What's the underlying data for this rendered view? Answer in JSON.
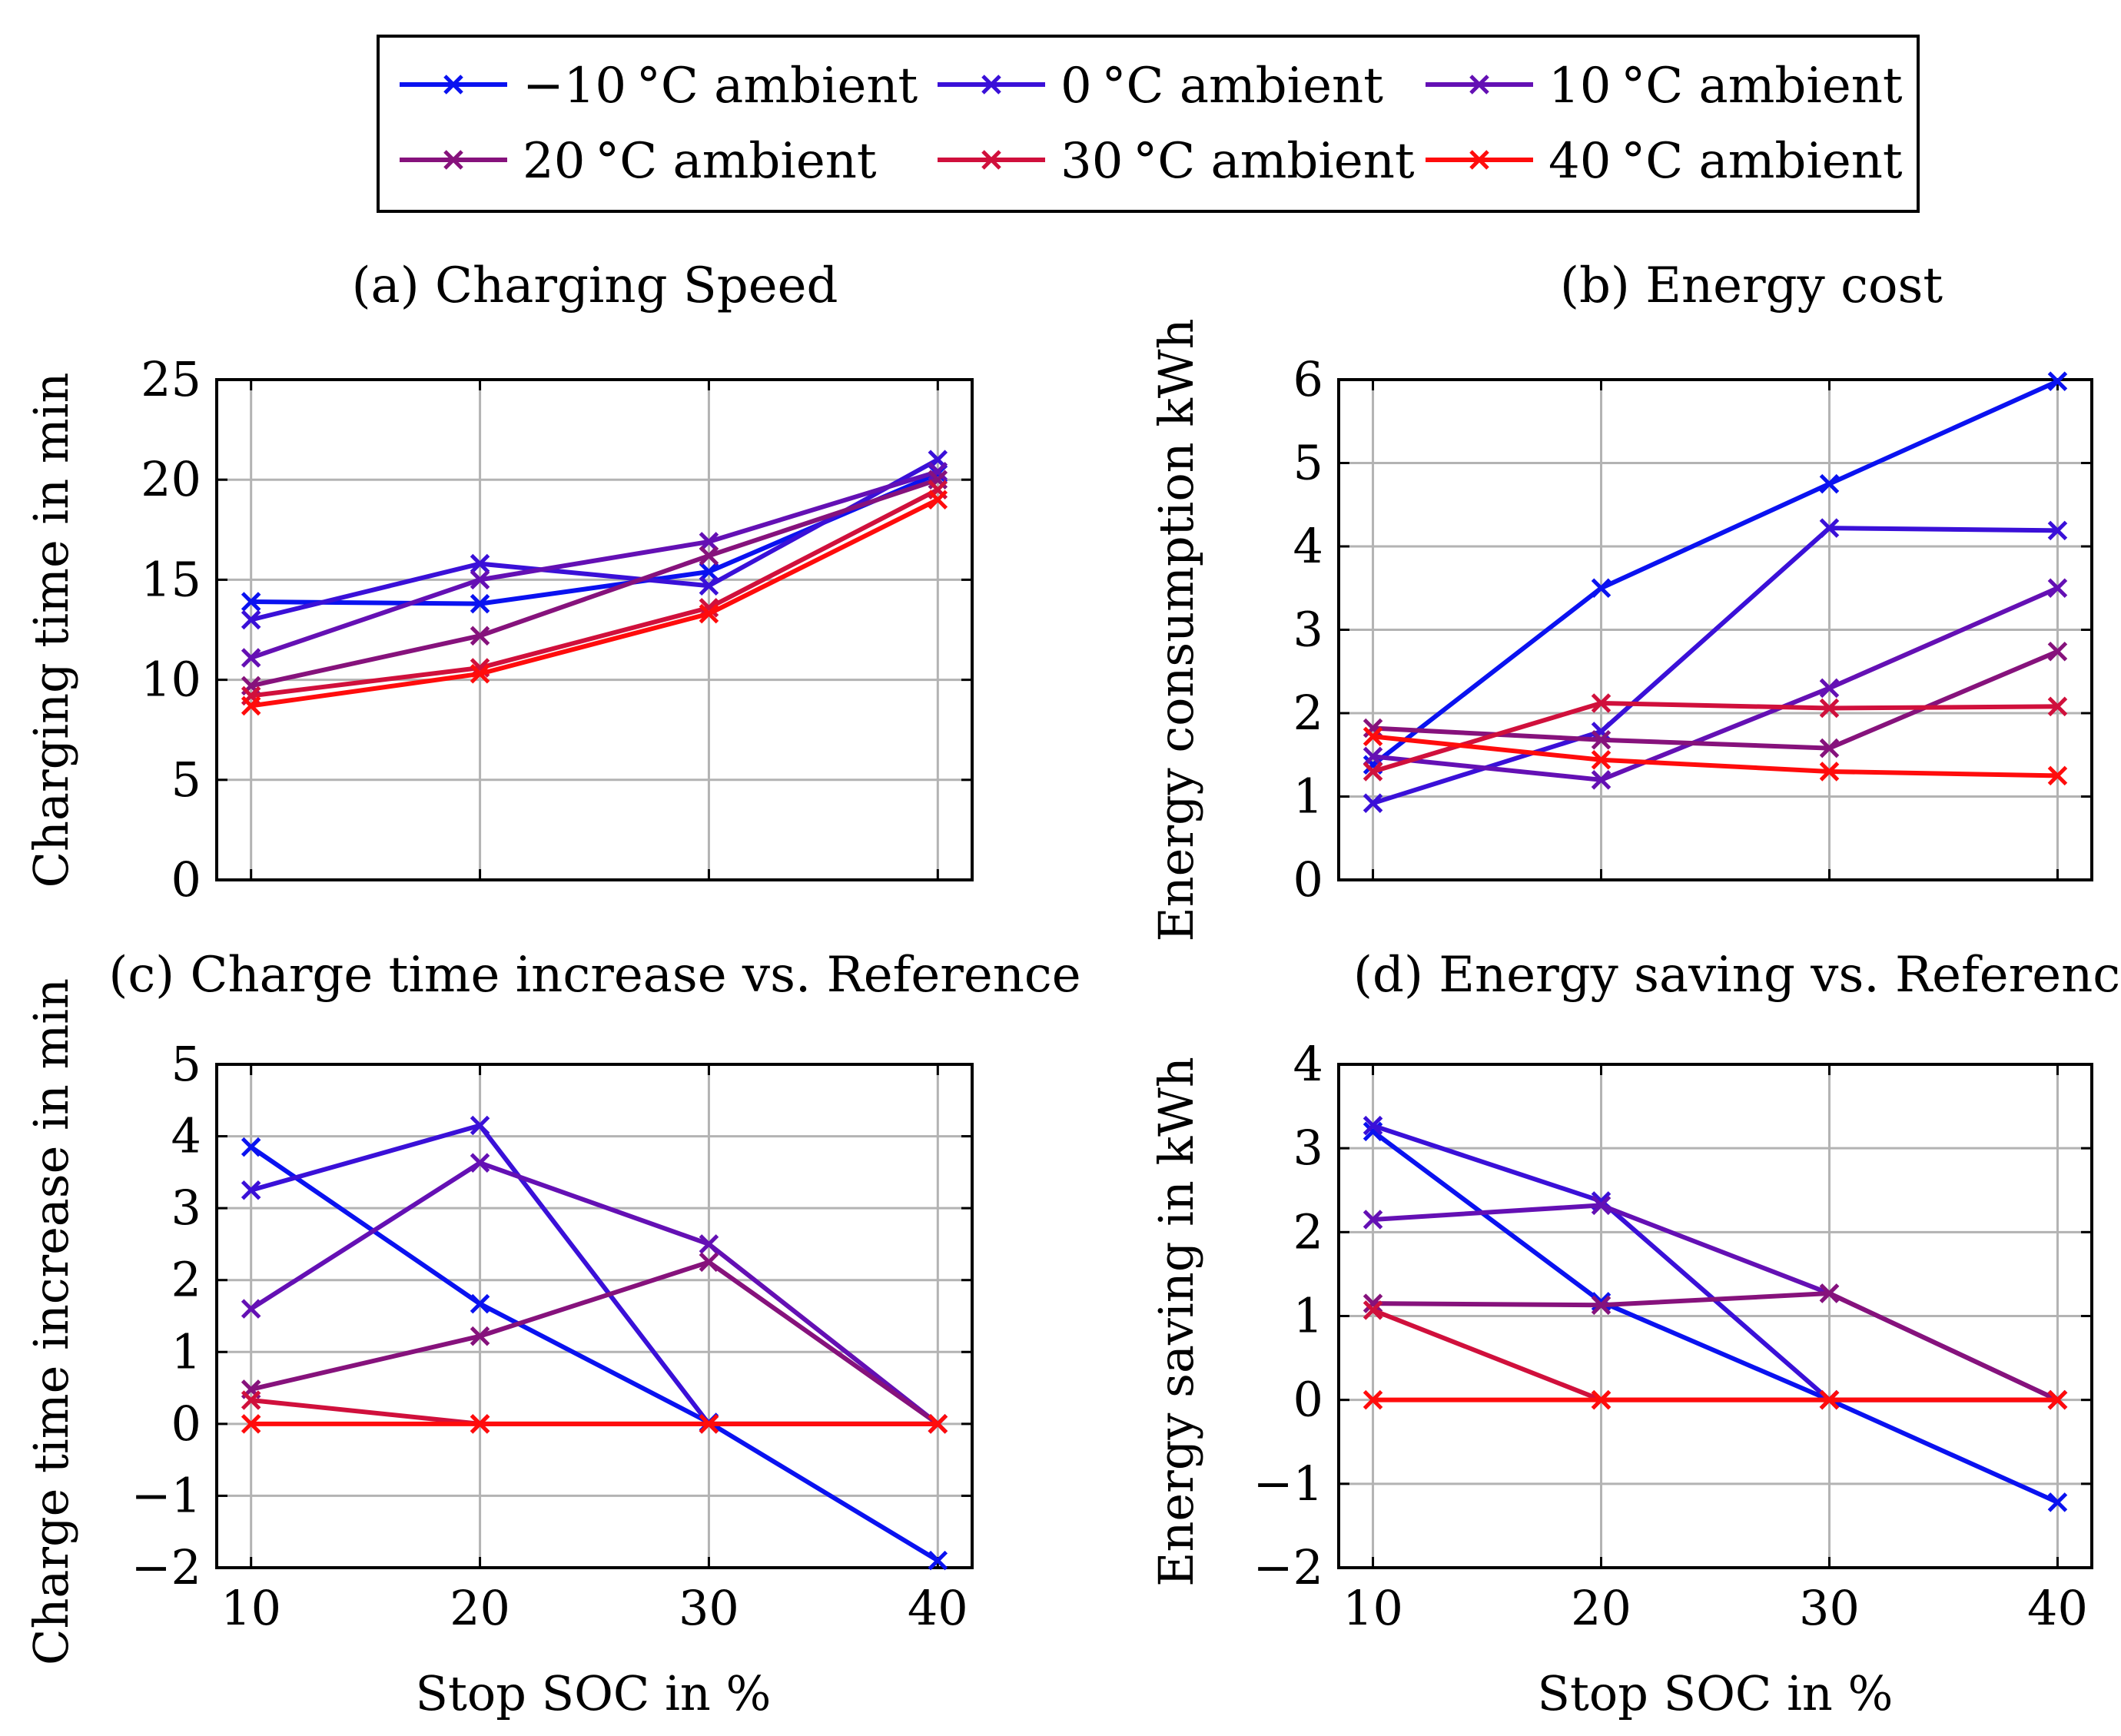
{
  "legend": {
    "entries": [
      {
        "label": "−10 °C ambient",
        "color": "#0a12f0"
      },
      {
        "label": "0 °C ambient",
        "color": "#3a10d8"
      },
      {
        "label": "10 °C ambient",
        "color": "#6410b4"
      },
      {
        "label": "20 °C ambient",
        "color": "#86127c"
      },
      {
        "label": "30 °C ambient",
        "color": "#d0103c"
      },
      {
        "label": "40 °C ambient",
        "color": "#ff0c0c"
      }
    ]
  },
  "chart_data": [
    {
      "type": "line",
      "title": "(a) Charging Speed",
      "xlabel": "",
      "ylabel": "Charging time in min",
      "x": [
        10,
        20,
        30,
        40
      ],
      "xlim": [
        8.5,
        41.5
      ],
      "ylim": [
        0,
        25
      ],
      "yticks": [
        0,
        5,
        10,
        15,
        20,
        25
      ],
      "ytick_labels": [
        "0",
        "5",
        "10",
        "15",
        "20",
        "25"
      ],
      "xticks": [
        10,
        20,
        30,
        40
      ],
      "xtick_labels": [],
      "grid": true,
      "series": [
        {
          "name": "−10 °C ambient",
          "values": [
            13.9,
            13.8,
            15.4,
            20.3
          ]
        },
        {
          "name": "0 °C ambient",
          "values": [
            13.0,
            15.8,
            14.7,
            21.0
          ]
        },
        {
          "name": "10 °C ambient",
          "values": [
            11.1,
            15.0,
            16.9,
            20.4
          ]
        },
        {
          "name": "20 °C ambient",
          "values": [
            9.7,
            12.2,
            16.2,
            20.0
          ]
        },
        {
          "name": "30 °C ambient",
          "values": [
            9.2,
            10.6,
            13.6,
            19.5
          ]
        },
        {
          "name": "40 °C ambient",
          "values": [
            8.7,
            10.3,
            13.3,
            19.0
          ]
        }
      ]
    },
    {
      "type": "line",
      "title": "(b) Energy cost",
      "xlabel": "",
      "ylabel": "Energy consumption kWh",
      "x": [
        10,
        20,
        30,
        40
      ],
      "xlim": [
        8.5,
        41.5
      ],
      "ylim": [
        0,
        6
      ],
      "yticks": [
        0,
        1,
        2,
        3,
        4,
        5,
        6
      ],
      "ytick_labels": [
        "0",
        "1",
        "2",
        "3",
        "4",
        "5",
        "6"
      ],
      "xticks": [
        10,
        20,
        30,
        40
      ],
      "xtick_labels": [],
      "grid": true,
      "series": [
        {
          "name": "−10 °C ambient",
          "values": [
            1.38,
            3.5,
            4.75,
            5.98
          ]
        },
        {
          "name": "0 °C ambient",
          "values": [
            0.92,
            1.78,
            4.22,
            4.19
          ]
        },
        {
          "name": "10 °C ambient",
          "values": [
            1.48,
            1.2,
            2.3,
            3.5
          ]
        },
        {
          "name": "20 °C ambient",
          "values": [
            1.82,
            1.68,
            1.58,
            2.74
          ]
        },
        {
          "name": "30 °C ambient",
          "values": [
            1.3,
            2.12,
            2.06,
            2.08
          ]
        },
        {
          "name": "40 °C ambient",
          "values": [
            1.72,
            1.44,
            1.3,
            1.25
          ]
        }
      ]
    },
    {
      "type": "line",
      "title": "(c) Charge time increase vs. Reference",
      "xlabel": "Stop SOC in %",
      "ylabel": "Charge time increase in min",
      "x": [
        10,
        20,
        30,
        40
      ],
      "xlim": [
        8.5,
        41.5
      ],
      "ylim": [
        -2,
        5
      ],
      "yticks": [
        -2,
        -1,
        0,
        1,
        2,
        3,
        4,
        5
      ],
      "ytick_labels": [
        "−2",
        "−1",
        "0",
        "1",
        "2",
        "3",
        "4",
        "5"
      ],
      "xticks": [
        10,
        20,
        30,
        40
      ],
      "xtick_labels": [
        "10",
        "20",
        "30",
        "40"
      ],
      "grid": true,
      "series": [
        {
          "name": "−10 °C ambient",
          "values": [
            3.85,
            1.67,
            0.02,
            -1.9
          ]
        },
        {
          "name": "0 °C ambient",
          "values": [
            3.25,
            4.15,
            0.0,
            0.0
          ]
        },
        {
          "name": "10 °C ambient",
          "values": [
            1.6,
            3.63,
            2.5,
            0.0
          ]
        },
        {
          "name": "20 °C ambient",
          "values": [
            0.48,
            1.22,
            2.25,
            0.0
          ]
        },
        {
          "name": "30 °C ambient",
          "values": [
            0.33,
            0.0,
            0.0,
            0.0
          ]
        },
        {
          "name": "40 °C ambient",
          "values": [
            0.0,
            0.0,
            0.0,
            0.0
          ]
        }
      ]
    },
    {
      "type": "line",
      "title": "(d) Energy saving vs. Reference",
      "xlabel": "Stop SOC in %",
      "ylabel": "Energy saving in kWh",
      "x": [
        10,
        20,
        30,
        40
      ],
      "xlim": [
        8.5,
        41.5
      ],
      "ylim": [
        -2,
        4
      ],
      "yticks": [
        -2,
        -1,
        0,
        1,
        2,
        3,
        4
      ],
      "ytick_labels": [
        "−2",
        "−1",
        "0",
        "1",
        "2",
        "3",
        "4"
      ],
      "xticks": [
        10,
        20,
        30,
        40
      ],
      "xtick_labels": [
        "10",
        "20",
        "30",
        "40"
      ],
      "grid": true,
      "series": [
        {
          "name": "−10 °C ambient",
          "values": [
            3.2,
            1.17,
            0.0,
            -1.22
          ]
        },
        {
          "name": "0 °C ambient",
          "values": [
            3.27,
            2.37,
            0.0,
            0.0
          ]
        },
        {
          "name": "10 °C ambient",
          "values": [
            2.15,
            2.32,
            1.27,
            0.0
          ]
        },
        {
          "name": "20 °C ambient",
          "values": [
            1.15,
            1.13,
            1.27,
            0.0
          ]
        },
        {
          "name": "30 °C ambient",
          "values": [
            1.07,
            0.0,
            0.0,
            0.0
          ]
        },
        {
          "name": "40 °C ambient",
          "values": [
            0.0,
            0.0,
            0.0,
            0.0
          ]
        }
      ]
    }
  ]
}
